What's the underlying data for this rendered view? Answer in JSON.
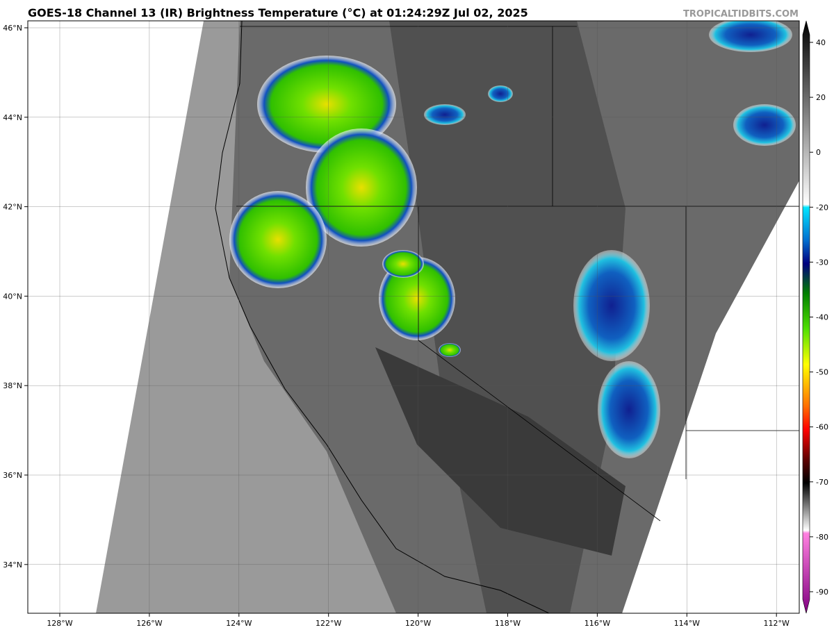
{
  "header": {
    "title": "GOES-18 Channel 13 (IR) Brightness Temperature (°C) at 01:24:29Z Jul 02, 2025",
    "watermark": "TROPICALTIDBITS.COM"
  },
  "map": {
    "latitude_labels": [
      "46°N",
      "44°N",
      "42°N",
      "40°N",
      "38°N",
      "36°N",
      "34°N"
    ],
    "longitude_labels": [
      "128°W",
      "126°W",
      "124°W",
      "122°W",
      "120°W",
      "118°W",
      "116°W",
      "114°W",
      "112°W"
    ]
  },
  "colorbar": {
    "ticks": [
      40,
      20,
      0,
      -20,
      -30,
      -40,
      -50,
      -60,
      -70,
      -80,
      -90
    ]
  }
}
